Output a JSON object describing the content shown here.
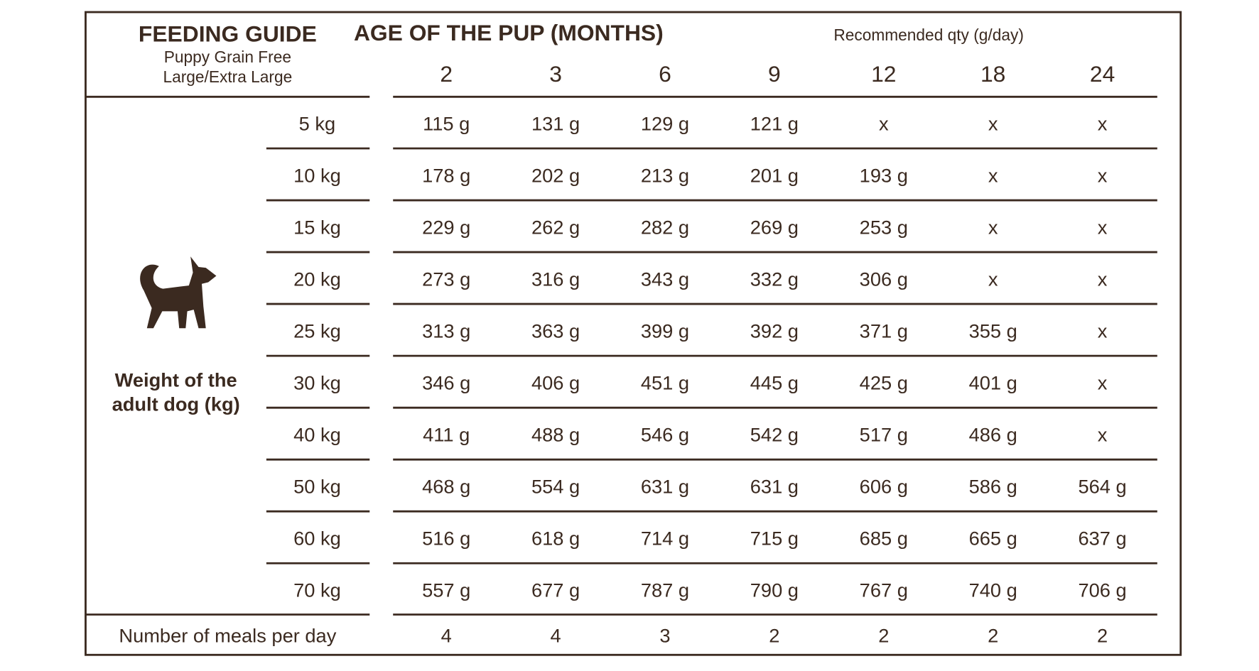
{
  "header": {
    "title": "FEEDING GUIDE",
    "subtitle": [
      "Puppy Grain Free",
      "Large/Extra Large"
    ],
    "age_heading": "AGE OF THE PUP (MONTHS)",
    "note": "Recommended qty (g/day)"
  },
  "table": {
    "columns": [
      2,
      3,
      6,
      9,
      12,
      18,
      24
    ],
    "side_label": [
      "Weight of the",
      "adult dog (kg)"
    ],
    "rows": [
      {
        "weight": "5 kg",
        "values": [
          "115 g",
          "131 g",
          "129 g",
          "121 g",
          "x",
          "x",
          "x"
        ]
      },
      {
        "weight": "10 kg",
        "values": [
          "178 g",
          "202 g",
          "213 g",
          "201 g",
          "193 g",
          "x",
          "x"
        ]
      },
      {
        "weight": "15 kg",
        "values": [
          "229 g",
          "262 g",
          "282 g",
          "269 g",
          "253 g",
          "x",
          "x"
        ]
      },
      {
        "weight": "20 kg",
        "values": [
          "273 g",
          "316 g",
          "343 g",
          "332 g",
          "306 g",
          "x",
          "x"
        ]
      },
      {
        "weight": "25 kg",
        "values": [
          "313 g",
          "363 g",
          "399  g",
          "392 g",
          "371 g",
          "355 g",
          "x"
        ]
      },
      {
        "weight": "30 kg",
        "values": [
          "346 g",
          "406 g",
          "451 g",
          "445 g",
          "425 g",
          "401 g",
          "x"
        ]
      },
      {
        "weight": "40 kg",
        "values": [
          "411 g",
          "488 g",
          "546 g",
          "542 g",
          "517 g",
          "486 g",
          "x"
        ]
      },
      {
        "weight": "50 kg",
        "values": [
          "468 g",
          "554 g",
          "631 g",
          "631 g",
          "606 g",
          "586 g",
          "564 g"
        ]
      },
      {
        "weight": "60 kg",
        "values": [
          "516 g",
          "618 g",
          "714 g",
          "715 g",
          "685 g",
          "665 g",
          "637 g"
        ]
      },
      {
        "weight": "70 kg",
        "values": [
          "557 g",
          "677 g",
          "787 g",
          "790 g",
          "767 g",
          "740 g",
          "706 g"
        ]
      }
    ],
    "footer": {
      "label": "Number of meals per day",
      "values": [
        4,
        4,
        3,
        2,
        2,
        2,
        2
      ]
    }
  }
}
